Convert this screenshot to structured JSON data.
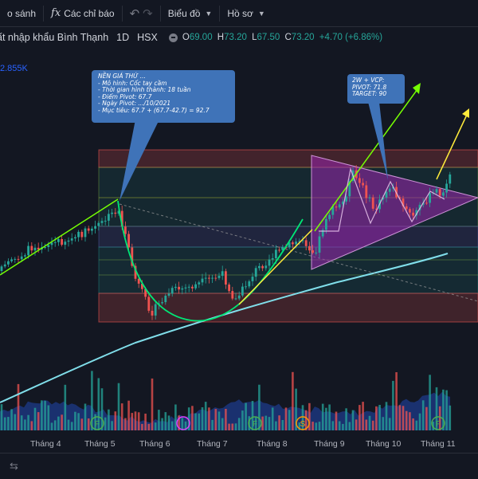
{
  "toolbar": {
    "compare_label": "o sánh",
    "indicators_label": "Các chỉ báo",
    "chart_label": "Biểu đồ",
    "profile_label": "Hồ sơ"
  },
  "header": {
    "title": "ất nhập khẩu Bình Thạnh",
    "timeframe": "1D",
    "exchange": "HSX",
    "o_key": "O",
    "o_val": "69.00",
    "h_key": "H",
    "h_val": "73.20",
    "l_key": "L",
    "l_val": "67.50",
    "c_key": "C",
    "c_val": "73.20",
    "change": "+4.70 (+6.86%)"
  },
  "volume_value": "2.855K",
  "note_cup": {
    "lines": [
      "NỀN GIÁ THỨ ...",
      "- Mô hình: Cốc tay cầm",
      "- Thời gian hình thành: 18 tuần",
      "- Điểm Pivot: 67.7",
      "- Ngày Pivot: .../10/2021",
      "- Mục tiêu: 67.7 + (67.7-42.7) = 92.7"
    ]
  },
  "note_vcp": {
    "lines": [
      "2W + VCP:",
      "PIVOT: 71.8",
      "TARGET: 90"
    ]
  },
  "x_axis_labels": [
    "Tháng 4",
    "Tháng 5",
    "Tháng 6",
    "Tháng 7",
    "Tháng 8",
    "Tháng 9",
    "Tháng 10",
    "Tháng 11"
  ],
  "event_markers": [
    {
      "month": "Tháng 5",
      "label": "F",
      "color": "#4caf50"
    },
    {
      "month": "Tháng 6",
      "label": "",
      "color": "#e040fb"
    },
    {
      "month": "Tháng 8",
      "label": "F",
      "color": "#4caf50"
    },
    {
      "month": "Tháng 8",
      "label": "S",
      "color": "#ff9800"
    },
    {
      "month": "Tháng 11",
      "label": "F",
      "color": "#4caf50"
    }
  ],
  "colors": {
    "up": "#26a69a",
    "down": "#ef5350",
    "cup_line": "#00e676",
    "trend_yellow": "#ffeb3b",
    "triangle": "#9c27b0",
    "ma_line": "#80deea",
    "note_bg": "#3f73b8"
  },
  "chart_data": {
    "type": "candlestick",
    "timeframe": "1D",
    "last_bar": {
      "open": 69.0,
      "high": 73.2,
      "low": 67.5,
      "close": 73.2,
      "change": 4.7,
      "change_pct": 6.86
    },
    "annotations": {
      "cup_pivot": 67.7,
      "cup_low": 42.7,
      "cup_target": 92.7,
      "vcp_pivot": 71.8,
      "vcp_target": 90
    }
  }
}
